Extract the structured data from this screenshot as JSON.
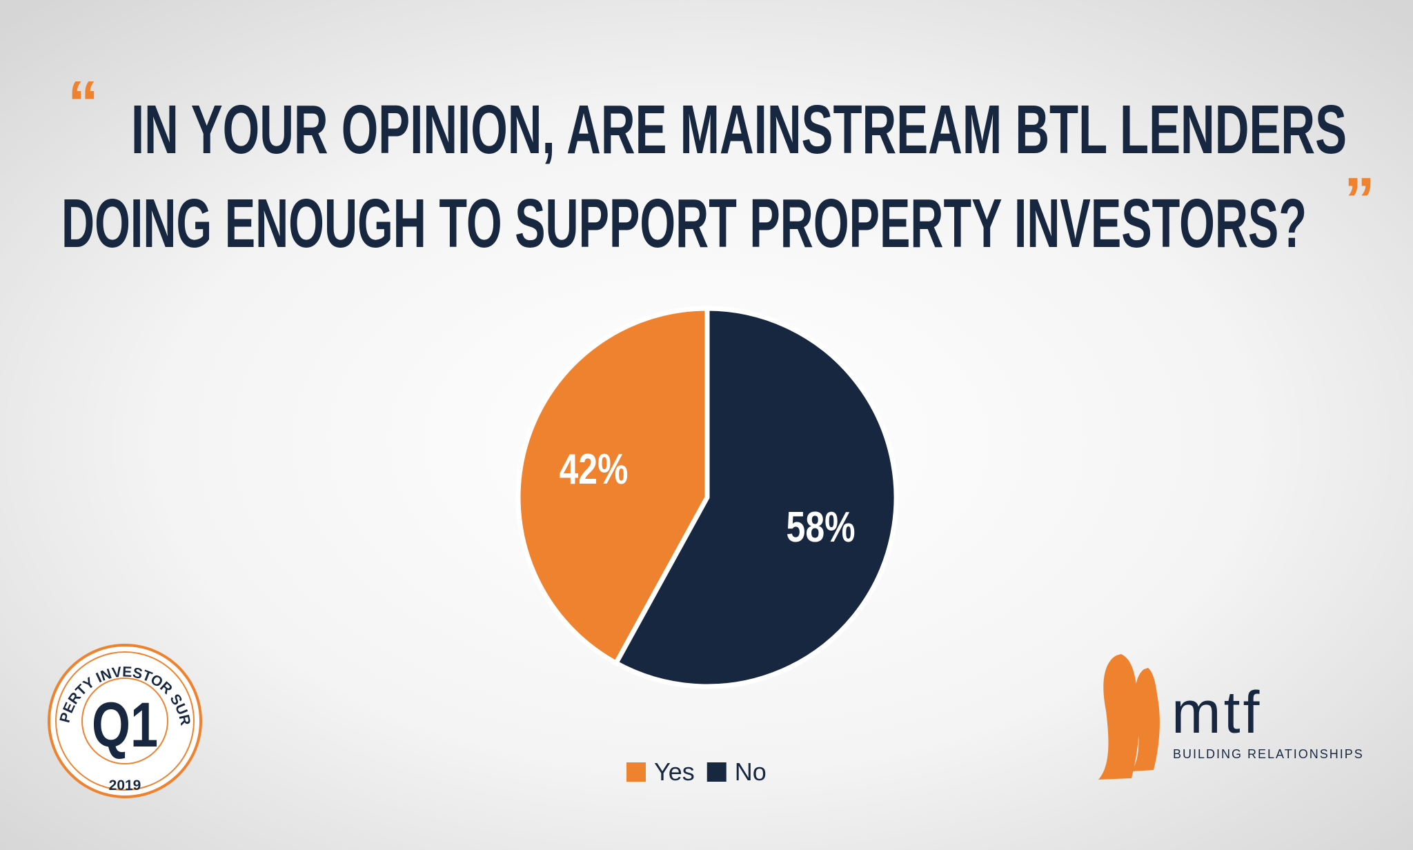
{
  "chart_data": {
    "type": "pie",
    "quote_open": "“",
    "quote_close": "”",
    "title": [
      "IN YOUR OPINION, ARE MAINSTREAM BTL LENDERS",
      "DOING ENOUGH TO SUPPORT PROPERTY INVESTORS?"
    ],
    "categories": [
      "Yes",
      "No"
    ],
    "values": [
      42,
      58
    ],
    "value_labels": [
      "42%",
      "58%"
    ],
    "colors": [
      "#ee822f",
      "#172740"
    ],
    "legend": "bottom"
  },
  "badge": {
    "arc_text": "PROPERTY INVESTOR SURVEY",
    "code": "Q1",
    "year": "2019"
  },
  "logo": {
    "name": "mtf",
    "tagline": "BUILDING RELATIONSHIPS"
  }
}
